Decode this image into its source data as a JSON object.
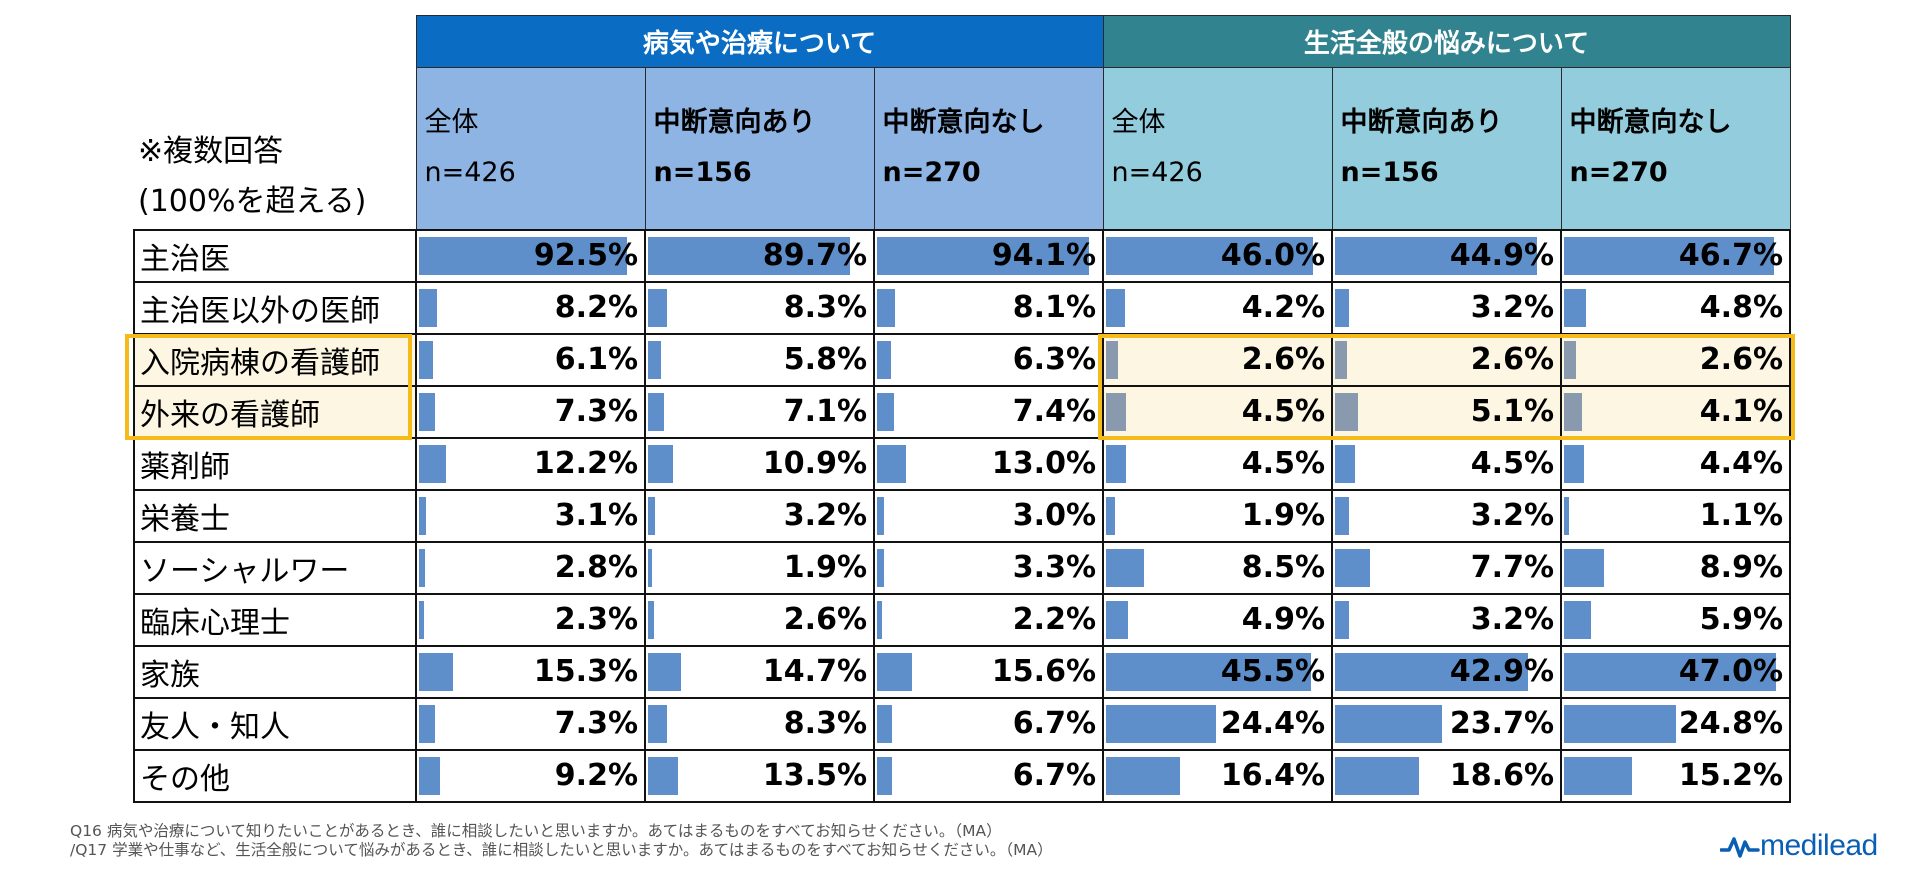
{
  "chart_data": {
    "type": "table",
    "note_line1": "※複数回答",
    "note_line2": "(100%を超える)",
    "groups": [
      "病気や治療について",
      "生活全般の悩みについて"
    ],
    "columns": [
      {
        "group": "病気や治療について",
        "label": "全体",
        "n": "n=426",
        "bold": false
      },
      {
        "group": "病気や治療について",
        "label": "中断意向あり",
        "n": "n=156",
        "bold": true
      },
      {
        "group": "病気や治療について",
        "label": "中断意向なし",
        "n": "n=270",
        "bold": true
      },
      {
        "group": "生活全般の悩みについて",
        "label": "全体",
        "n": "n=426",
        "bold": false
      },
      {
        "group": "生活全般の悩みについて",
        "label": "中断意向あり",
        "n": "n=156",
        "bold": true
      },
      {
        "group": "生活全般の悩みについて",
        "label": "中断意向なし",
        "n": "n=270",
        "bold": true
      }
    ],
    "rows": [
      {
        "label": "主治医",
        "values": [
          92.5,
          89.7,
          94.1,
          46.0,
          44.9,
          46.7
        ]
      },
      {
        "label": "主治医以外の医師",
        "values": [
          8.2,
          8.3,
          8.1,
          4.2,
          3.2,
          4.8
        ]
      },
      {
        "label": "入院病棟の看護師",
        "values": [
          6.1,
          5.8,
          6.3,
          2.6,
          2.6,
          2.6
        ],
        "highlight": true
      },
      {
        "label": "外来の看護師",
        "values": [
          7.3,
          7.1,
          7.4,
          4.5,
          5.1,
          4.1
        ],
        "highlight": true
      },
      {
        "label": "薬剤師",
        "values": [
          12.2,
          10.9,
          13.0,
          4.5,
          4.5,
          4.4
        ]
      },
      {
        "label": "栄養士",
        "values": [
          3.1,
          3.2,
          3.0,
          1.9,
          3.2,
          1.1
        ]
      },
      {
        "label": "ソーシャルワー",
        "values": [
          2.8,
          1.9,
          3.3,
          8.5,
          7.7,
          8.9
        ]
      },
      {
        "label": "臨床心理士",
        "values": [
          2.3,
          2.6,
          2.2,
          4.9,
          3.2,
          5.9
        ]
      },
      {
        "label": "家族",
        "values": [
          15.3,
          14.7,
          15.6,
          45.5,
          42.9,
          47.0
        ]
      },
      {
        "label": "友人・知人",
        "values": [
          7.3,
          8.3,
          6.7,
          24.4,
          23.7,
          24.8
        ]
      },
      {
        "label": "その他",
        "values": [
          9.2,
          13.5,
          6.7,
          16.4,
          18.6,
          15.2
        ]
      }
    ],
    "value_unit": "%",
    "bar_scale_max": {
      "group1": 100,
      "group2": 50
    }
  },
  "footnote": {
    "line1": "Q16  病気や治療について知りたいことがあるとき、誰に相談したいと思いますか。あてはまるものをすべてお知らせください。（MA）",
    "line2": "/Q17  学業や仕事など、生活全般について悩みがあるとき、誰に相談したいと思いますか。あてはまるものをすべてお知らせください。（MA）"
  },
  "logo": {
    "text": "medilead"
  },
  "colors": {
    "group1": "#0a6cc2",
    "group2": "#31848f",
    "bar": "#5f8fca",
    "highlight": "#f5bb1b"
  }
}
